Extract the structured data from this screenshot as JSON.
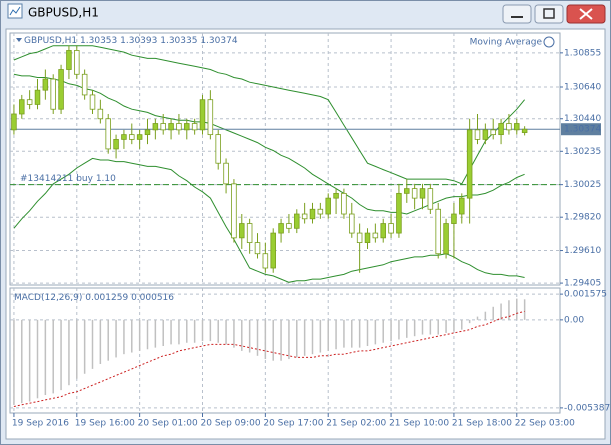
{
  "window": {
    "title": "GBPUSD,H1"
  },
  "chart_data": [
    {
      "type": "candlestick",
      "title": "GBPUSD,H1",
      "indicator": "Moving Average",
      "categories": [
        "19 Sep 2016",
        null,
        null,
        null,
        null,
        null,
        null,
        null,
        "19 Sep 16:00",
        null,
        null,
        null,
        null,
        null,
        null,
        null,
        "20 Sep 01:00",
        null,
        null,
        null,
        null,
        null,
        null,
        null,
        "20 Sep 09:00",
        null,
        null,
        null,
        null,
        null,
        null,
        null,
        "20 Sep 17:00",
        null,
        null,
        null,
        null,
        null,
        null,
        null,
        "21 Sep 02:00",
        null,
        null,
        null,
        null,
        null,
        null,
        null,
        "21 Sep 10:00",
        null,
        null,
        null,
        null,
        null,
        null,
        null,
        "21 Sep 18:00",
        null,
        null,
        null,
        null,
        null,
        null,
        null,
        "22 Sep 03:00",
        null,
        null,
        null,
        null,
        null
      ],
      "open": [
        1.3037,
        1.3047,
        1.3056,
        1.3053,
        1.3062,
        1.3069,
        1.305,
        1.3075,
        1.3087,
        1.3072,
        1.3059,
        1.305,
        1.3044,
        1.3025,
        1.3031,
        1.3034,
        1.3031,
        1.3034,
        1.3037,
        1.3041,
        1.3037,
        1.3041,
        1.3037,
        1.3041,
        1.3037,
        1.3056,
        1.3034,
        1.3016,
        1.3003,
        1.2969,
        1.2978,
        1.2966,
        1.2959,
        1.295,
        1.2972,
        1.2978,
        1.2975,
        1.2984,
        1.2981,
        1.2987,
        1.2984,
        1.2994,
        1.2997,
        1.2984,
        1.2972,
        1.2966,
        1.2972,
        1.2969,
        1.2978,
        1.2972,
        1.2997,
        1.3,
        1.2994,
        1.3,
        1.2987,
        1.2959,
        1.2978,
        1.2984,
        1.2994,
        1.3037,
        1.3031,
        1.3037,
        1.3034,
        1.3041,
        1.3037,
        1.30353,
        null,
        null,
        null,
        null
      ],
      "high": [
        1.3053,
        1.3059,
        1.3062,
        1.3069,
        1.3075,
        1.3072,
        1.3078,
        1.309,
        1.309,
        1.3075,
        1.3062,
        1.3056,
        1.3047,
        1.3034,
        1.3037,
        1.3041,
        1.3037,
        1.3044,
        1.3044,
        1.3047,
        1.3044,
        1.3047,
        1.3044,
        1.3044,
        1.3059,
        1.3062,
        1.3037,
        1.3019,
        1.3006,
        1.2984,
        1.2981,
        1.2972,
        1.2966,
        1.2975,
        1.2981,
        1.2984,
        1.2987,
        1.2991,
        1.2991,
        1.2991,
        1.2997,
        1.3,
        1.3,
        1.2991,
        1.2978,
        1.2975,
        1.2978,
        1.2981,
        1.2984,
        1.3003,
        1.3006,
        1.3003,
        1.3003,
        1.3003,
        1.2991,
        1.2981,
        1.2991,
        1.2997,
        1.3044,
        1.3047,
        1.3041,
        1.3044,
        1.3044,
        1.3047,
        1.3044,
        1.30393,
        null,
        null,
        null,
        null
      ],
      "low": [
        1.3034,
        1.3044,
        1.305,
        1.305,
        1.3056,
        1.3047,
        1.3047,
        1.3069,
        1.3069,
        1.3056,
        1.3047,
        1.3041,
        1.3022,
        1.3019,
        1.3025,
        1.3028,
        1.3025,
        1.3028,
        1.3031,
        1.3034,
        1.3031,
        1.3034,
        1.3031,
        1.3034,
        1.3034,
        1.3031,
        1.3012,
        1.2997,
        1.2966,
        1.2962,
        1.2959,
        1.2956,
        1.2947,
        1.2947,
        1.2966,
        1.2972,
        1.2972,
        1.2978,
        1.2978,
        1.2981,
        1.2981,
        1.2984,
        1.2981,
        1.2969,
        1.2947,
        1.2962,
        1.2966,
        1.2966,
        1.2969,
        1.2969,
        1.2991,
        1.2987,
        1.2987,
        1.2984,
        1.2956,
        1.2956,
        1.2956,
        1.2978,
        1.2978,
        1.3028,
        1.3028,
        1.3031,
        1.3028,
        1.3034,
        1.3034,
        1.30335,
        null,
        null,
        null,
        null
      ],
      "close": [
        1.3047,
        1.3056,
        1.3053,
        1.3062,
        1.3069,
        1.305,
        1.3075,
        1.3087,
        1.3072,
        1.3059,
        1.305,
        1.3044,
        1.3025,
        1.3031,
        1.3034,
        1.3031,
        1.3034,
        1.3037,
        1.3041,
        1.3037,
        1.3041,
        1.3037,
        1.3041,
        1.3037,
        1.3056,
        1.3034,
        1.3016,
        1.3003,
        1.2969,
        1.2978,
        1.2966,
        1.2959,
        1.295,
        1.2972,
        1.2978,
        1.2975,
        1.2984,
        1.2981,
        1.2987,
        1.2984,
        1.2994,
        1.2997,
        1.2984,
        1.2972,
        1.2966,
        1.2972,
        1.2969,
        1.2978,
        1.2972,
        1.2997,
        1.3,
        1.2994,
        1.3,
        1.2987,
        1.2959,
        1.2978,
        1.2984,
        1.2994,
        1.3037,
        1.3031,
        1.3037,
        1.3034,
        1.3041,
        1.3037,
        1.3041,
        1.30374,
        null,
        null,
        null,
        null
      ],
      "up_color": "#9acd32",
      "down_color": "#ffffff",
      "candle_outline": "#7a9f1e",
      "lines": [
        {
          "color": "#2f8f2f",
          "values": [
            1.3081,
            1.3083,
            1.3085,
            1.3086,
            1.3088,
            1.309,
            1.309,
            1.309,
            1.309,
            1.309,
            1.309,
            1.3089,
            1.3088,
            1.3087,
            1.3086,
            1.3084,
            1.3083,
            1.3082,
            1.3082,
            1.3081,
            1.308,
            1.3079,
            1.3078,
            1.3077,
            1.3076,
            1.3075,
            1.3073,
            1.3072,
            1.307,
            1.3069,
            1.3067,
            1.3066,
            1.3065,
            1.3064,
            1.3063,
            1.3062,
            1.3061,
            1.306,
            1.3059,
            1.3058,
            1.3056,
            1.3048,
            1.304,
            1.3032,
            1.3024,
            1.3016,
            1.3014,
            1.3012,
            1.301,
            1.3008,
            1.3006,
            1.3006,
            1.3006,
            1.3006,
            1.3006,
            1.3006,
            1.3005,
            1.3003,
            1.3012,
            1.3021,
            1.303,
            1.3035,
            1.304,
            1.3045,
            1.305,
            1.3056,
            null,
            null,
            null,
            null
          ]
        },
        {
          "color": "#2f8f2f",
          "values": [
            1.3072,
            1.3071,
            1.3071,
            1.307,
            1.307,
            1.3069,
            1.3068,
            1.3066,
            1.3065,
            1.3063,
            1.3062,
            1.306,
            1.3057,
            1.3055,
            1.3052,
            1.305,
            1.3049,
            1.3048,
            1.3046,
            1.3045,
            1.3044,
            1.3043,
            1.3043,
            1.3042,
            1.3042,
            1.3041,
            1.3039,
            1.3037,
            1.3035,
            1.3033,
            1.3031,
            1.3029,
            1.3026,
            1.3024,
            1.3021,
            1.3019,
            1.3016,
            1.3013,
            1.3009,
            1.3006,
            1.3003,
            1.3,
            1.2997,
            1.2994,
            1.299,
            1.2987,
            1.2986,
            1.2986,
            1.2985,
            1.2985,
            1.2984,
            1.2986,
            1.2988,
            1.299,
            1.2992,
            1.2994,
            1.2995,
            1.2995,
            1.2996,
            1.2996,
            1.2997,
            1.2999,
            1.3002,
            1.3004,
            1.3007,
            1.3009,
            null,
            null,
            null,
            null
          ]
        },
        {
          "color": "#2f8f2f",
          "values": [
            1.2975,
            1.2981,
            1.2986,
            1.2992,
            1.2997,
            1.3003,
            1.3006,
            1.3009,
            1.3013,
            1.3016,
            1.3019,
            1.3018,
            1.3018,
            1.3017,
            1.3017,
            1.3016,
            1.3015,
            1.3014,
            1.3014,
            1.3013,
            1.3012,
            1.3008,
            1.3005,
            1.3001,
            1.2998,
            1.2994,
            1.2985,
            1.2976,
            1.2968,
            1.2959,
            1.295,
            1.2948,
            1.2946,
            1.2945,
            1.2943,
            1.2941,
            1.2942,
            1.2942,
            1.2943,
            1.2943,
            1.2944,
            1.2945,
            1.2946,
            1.2948,
            1.2949,
            1.295,
            1.2951,
            1.2952,
            1.2954,
            1.2955,
            1.2956,
            1.2957,
            1.2957,
            1.2958,
            1.2958,
            1.2959,
            1.2957,
            1.2954,
            1.2952,
            1.2949,
            1.2947,
            1.2946,
            1.2946,
            1.2945,
            1.2945,
            1.2944,
            null,
            null,
            null,
            null
          ]
        }
      ],
      "order": {
        "label": "#13414211 buy 1.10",
        "price": 1.30025,
        "color": "#2f8f2f"
      },
      "price_line_color": "#5f7f9f",
      "ylim": [
        1.29393,
        1.3098
      ],
      "yticks": [
        1.30855,
        {
          "value": 1.3064,
          "label": "1.30640"
        },
        {
          "value": 1.3044,
          "label": "1.30440"
        },
        1.30235,
        1.30025,
        {
          "value": 1.2982,
          "label": "1.29820"
        },
        {
          "value": 1.2961,
          "label": "1.29610"
        },
        1.29405
      ],
      "grid": true
    },
    {
      "type": "macd",
      "title": "MACD(12,26,9)",
      "histogram": {
        "color": "#c0c0c0",
        "values": [
          -0.0052,
          -0.0051,
          -0.005,
          -0.0048,
          -0.0046,
          -0.0045,
          -0.0043,
          -0.004,
          -0.0036,
          -0.0033,
          -0.003,
          -0.0027,
          -0.0025,
          -0.0023,
          -0.0021,
          -0.002,
          -0.0019,
          -0.0018,
          -0.0017,
          -0.0016,
          -0.0015,
          -0.0015,
          -0.0014,
          -0.0014,
          -0.0013,
          -0.0013,
          -0.0014,
          -0.0015,
          -0.0017,
          -0.0019,
          -0.002,
          -0.0022,
          -0.0024,
          -0.0025,
          -0.0025,
          -0.0024,
          -0.0023,
          -0.0022,
          -0.0021,
          -0.002,
          -0.0019,
          -0.0018,
          -0.0017,
          -0.0017,
          -0.0017,
          -0.0016,
          -0.0015,
          -0.0014,
          -0.0013,
          -0.0012,
          -0.0011,
          -0.001,
          -0.0009,
          -0.0009,
          -0.0009,
          -0.0008,
          -0.0007,
          -0.0006,
          -0.0002,
          0.0002,
          0.0005,
          0.0008,
          0.001,
          0.0012,
          0.0013,
          0.001259,
          null,
          null,
          null,
          null
        ]
      },
      "signal": {
        "color": "#cc2020",
        "values": [
          -0.0053,
          -0.0052,
          -0.0051,
          -0.005,
          -0.0049,
          -0.0048,
          -0.0047,
          -0.0045,
          -0.0044,
          -0.0042,
          -0.004,
          -0.0038,
          -0.0036,
          -0.0034,
          -0.0032,
          -0.003,
          -0.0028,
          -0.0026,
          -0.0024,
          -0.0022,
          -0.0021,
          -0.0019,
          -0.0018,
          -0.0017,
          -0.0016,
          -0.0015,
          -0.0015,
          -0.0015,
          -0.0015,
          -0.0016,
          -0.0017,
          -0.0018,
          -0.0019,
          -0.002,
          -0.0021,
          -0.0022,
          -0.0023,
          -0.0023,
          -0.0023,
          -0.0022,
          -0.0022,
          -0.0021,
          -0.0021,
          -0.002,
          -0.0019,
          -0.0019,
          -0.0018,
          -0.0017,
          -0.0016,
          -0.0015,
          -0.0014,
          -0.0013,
          -0.0012,
          -0.0011,
          -0.001,
          -0.0009,
          -0.0008,
          -0.0007,
          -0.0006,
          -0.0004,
          -0.0003,
          -0.0001,
          0.0001,
          0.0002,
          0.0004,
          0.000516,
          null,
          null,
          null,
          null
        ]
      },
      "ylim": [
        -0.0057,
        0.00195
      ],
      "yticks": [
        0.001575,
        {
          "value": 0,
          "label": "0.00"
        },
        -0.005387
      ],
      "grid": true
    }
  ]
}
